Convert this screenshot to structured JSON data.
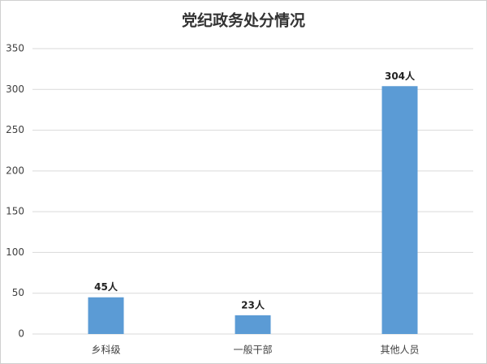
{
  "chart_data": {
    "type": "bar",
    "title": "党纪政务处分情况",
    "categories": [
      "乡科级",
      "一般干部",
      "其他人员"
    ],
    "values": [
      45,
      23,
      304
    ],
    "value_labels": [
      "45人",
      "23人",
      "304人"
    ],
    "color": "#5b9bd5",
    "ylim": [
      0,
      350
    ],
    "yticks": [
      0,
      50,
      100,
      150,
      200,
      250,
      300,
      350
    ],
    "grid": true
  }
}
